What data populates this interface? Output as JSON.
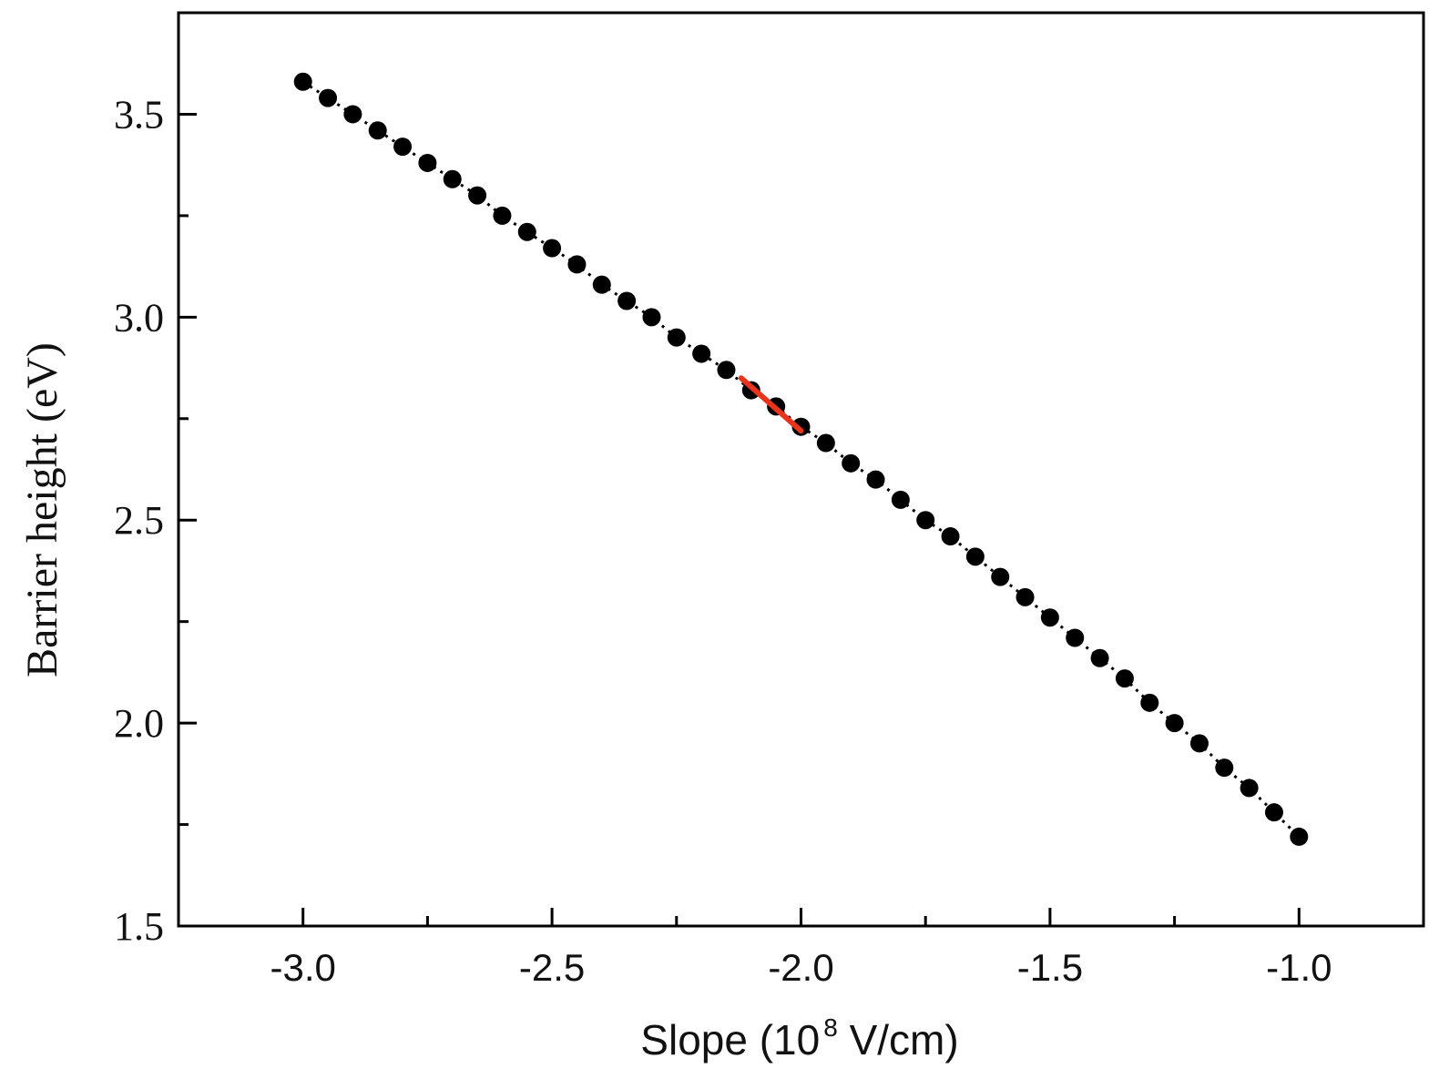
{
  "chart_data": {
    "type": "scatter",
    "title": "",
    "xlabel": "Slope (10",
    "xlabel_exponent": "8",
    "xlabel_unit": " V/cm)",
    "ylabel": "Barrier height (eV)",
    "xlim": [
      -3.25,
      -0.75
    ],
    "ylim": [
      1.5,
      3.75
    ],
    "x_ticks": [
      -3.0,
      -2.5,
      -2.0,
      -1.5,
      -1.0
    ],
    "x_tick_labels": [
      "-3.0",
      "-2.5",
      "-2.0",
      "-1.5",
      "-1.0"
    ],
    "y_ticks": [
      1.5,
      2.0,
      2.5,
      3.0,
      3.5
    ],
    "y_tick_labels": [
      "1.5",
      "2.0",
      "2.5",
      "3.0",
      "3.5"
    ],
    "y_minor_ticks": [
      1.75,
      2.25,
      2.75,
      3.25
    ],
    "grid": false,
    "legend": "none",
    "series": [
      {
        "marker": "circle",
        "color": "#000000",
        "x": [
          -3.0,
          -2.95,
          -2.9,
          -2.85,
          -2.8,
          -2.75,
          -2.7,
          -2.65,
          -2.6,
          -2.55,
          -2.5,
          -2.45,
          -2.4,
          -2.35,
          -2.3,
          -2.25,
          -2.2,
          -2.15,
          -2.1,
          -2.05,
          -2.0,
          -1.95,
          -1.9,
          -1.85,
          -1.8,
          -1.75,
          -1.7,
          -1.65,
          -1.6,
          -1.55,
          -1.5,
          -1.45,
          -1.4,
          -1.35,
          -1.3,
          -1.25,
          -1.2,
          -1.15,
          -1.1,
          -1.05,
          -1.0
        ],
        "y": [
          3.58,
          3.54,
          3.5,
          3.46,
          3.42,
          3.38,
          3.34,
          3.3,
          3.25,
          3.21,
          3.17,
          3.13,
          3.08,
          3.04,
          3.0,
          2.95,
          2.91,
          2.87,
          2.82,
          2.78,
          2.73,
          2.69,
          2.64,
          2.6,
          2.55,
          2.5,
          2.46,
          2.41,
          2.36,
          2.31,
          2.26,
          2.21,
          2.16,
          2.11,
          2.05,
          2.0,
          1.95,
          1.89,
          1.84,
          1.78,
          1.72
        ]
      },
      {
        "type": "line",
        "color": "#e8341c",
        "x": [
          -2.12,
          -2.0
        ],
        "y": [
          2.85,
          2.72
        ]
      }
    ]
  }
}
